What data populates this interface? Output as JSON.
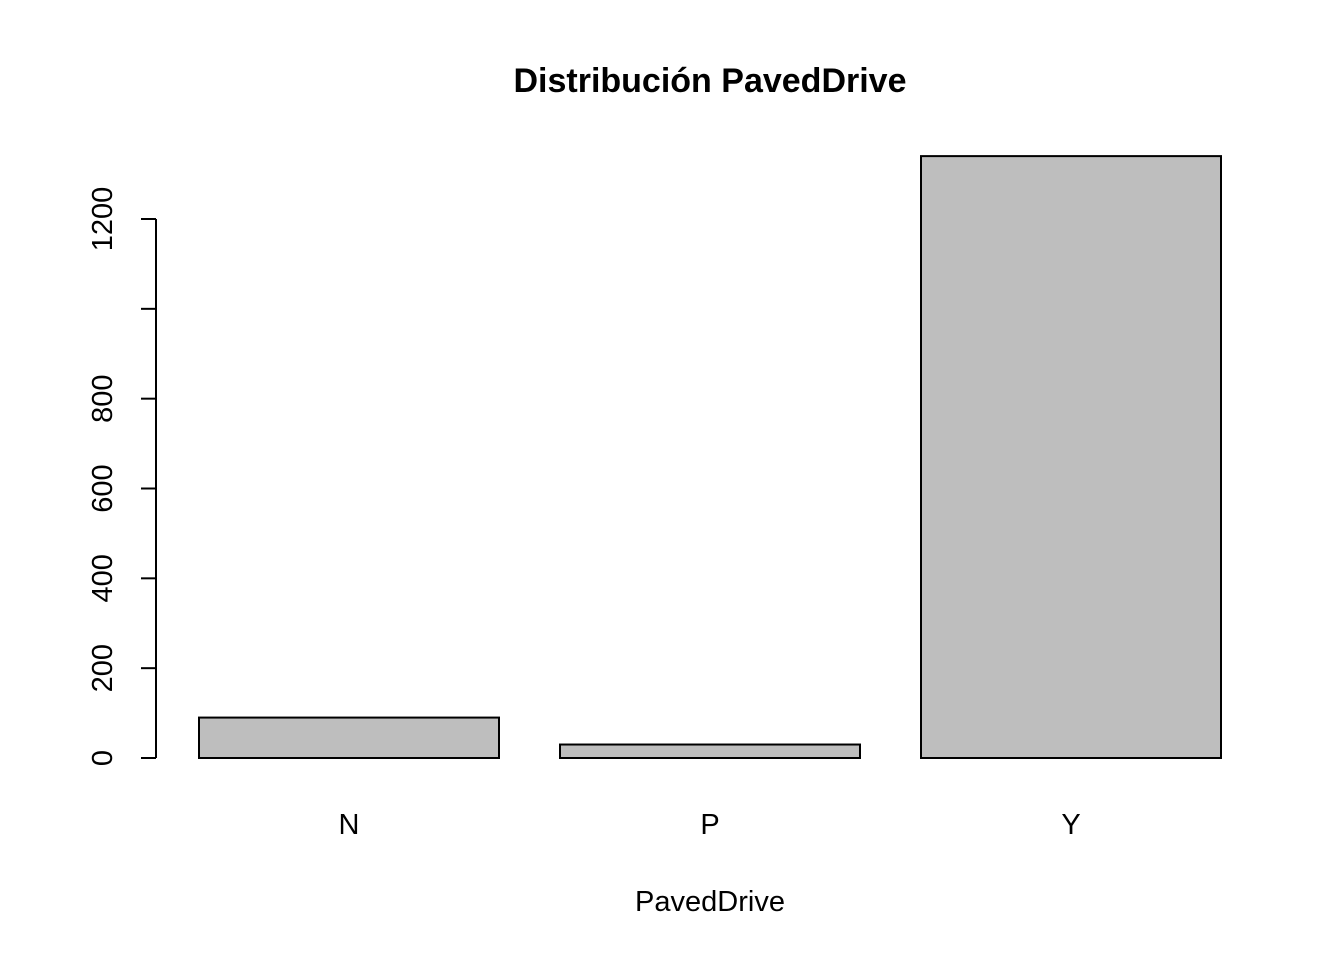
{
  "chart_data": {
    "type": "bar",
    "title": "Distribución PavedDrive",
    "xlabel": "PavedDrive",
    "ylabel": "",
    "categories": [
      "N",
      "P",
      "Y"
    ],
    "values": [
      90,
      30,
      1340
    ],
    "yticks": [
      0,
      200,
      400,
      600,
      800,
      1000,
      1200
    ],
    "ytick_labels": [
      "0",
      "200",
      "400",
      "600",
      "800",
      "",
      "1200"
    ],
    "ylim": [
      0,
      1340
    ],
    "grid": false,
    "colors": {
      "bar_fill": "#bebebe",
      "bar_stroke": "#000000"
    }
  }
}
